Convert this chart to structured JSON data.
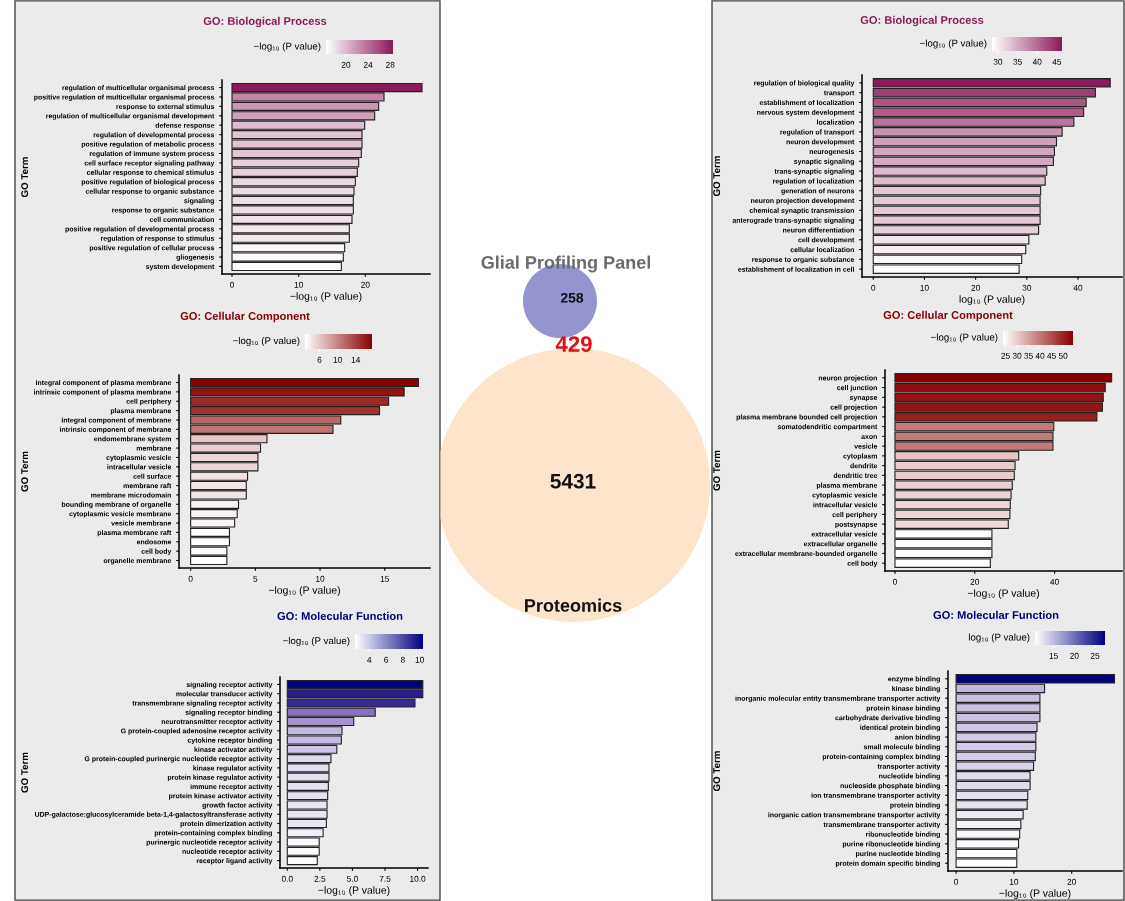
{
  "chart_data": [
    {
      "type": "bar",
      "orientation": "horizontal",
      "title": "GO: Biological Process",
      "xlabel": "−log₁₀ (P value)",
      "ylabel": "GO Term",
      "clabel": "−log₁₀ (P value)",
      "categories": [
        "regulation of multicellular organismal process",
        "positive regulation of multicellular organismal process",
        "response to external stimulus",
        "regulation of multicellular organismal development",
        "defense response",
        "regulation of developmental process",
        "positive regulation of metabolic process",
        "regulation of immune system process",
        "cell surface receptor signaling pathway",
        "cellular response to chemical stimulus",
        "positive regulation of biological process",
        "cellular response to organic substance",
        "signaling",
        "response to organic substance",
        "cell communication",
        "positive regulation of developmental process",
        "regulation of response to stimulus",
        "positive regulation of cellular process",
        "gliogenesis",
        "system development"
      ],
      "values": [
        28.5,
        22.8,
        22.0,
        21.4,
        19.9,
        19.5,
        19.5,
        19.4,
        19.0,
        18.8,
        18.5,
        18.3,
        18.2,
        18.2,
        18.0,
        17.6,
        17.6,
        16.9,
        16.7,
        16.4
      ],
      "colors": [
        "#8b1a5a",
        "#c286a8",
        "#ca96b3",
        "#cfa1bb",
        "#ddbdcf",
        "#e1c3d4",
        "#e1c3d4",
        "#e2c6d6",
        "#e7cfdc",
        "#e8d1de",
        "#ebd8e3",
        "#ecdae5",
        "#eedde6",
        "#eedde6",
        "#f0e1ea",
        "#f3e8ee",
        "#f3e8ee",
        "#faf6f8",
        "#fdfafc",
        "#ffffff"
      ],
      "xlim": [
        -1.5,
        29.7
      ],
      "xticks": [
        0,
        10,
        20
      ],
      "clim": [
        16.4,
        28.5
      ],
      "cticks": [
        20,
        24,
        28
      ]
    },
    {
      "type": "bar",
      "orientation": "horizontal",
      "title": "GO: Biological Process",
      "xlabel": "log₁₀ (P value)",
      "ylabel": "GO Term",
      "clabel": "−log₁₀ (P value)",
      "categories": [
        "regulation of biological quality",
        "transport",
        "establishment of localization",
        "nervous system development",
        "localization",
        "regulation of transport",
        "neuron development",
        "neurogenesis",
        "synaptic signaling",
        "trans-synaptic signaling",
        "regulation of localization",
        "generation of neurons",
        "neuron projection development",
        "chemical synaptic transmission",
        "anterograde trans-synaptic signaling",
        "neuron differentiation",
        "cell development",
        "cellular localization",
        "response to organic substance",
        "establishment of localization in cell"
      ],
      "values": [
        46.3,
        43.4,
        41.6,
        41.1,
        39.2,
        36.9,
        35.8,
        35.4,
        35.2,
        33.9,
        33.6,
        32.7,
        32.6,
        32.6,
        32.6,
        32.3,
        30.4,
        29.8,
        29.0,
        28.5
      ],
      "colors": [
        "#8b1a5a",
        "#9e3f74",
        "#a95685",
        "#ad5c8a",
        "#b9769c",
        "#c893b1",
        "#cfa1bb",
        "#d2a6bf",
        "#d3a8c0",
        "#dcbacd",
        "#ddbdcf",
        "#e3c8d7",
        "#e4cad9",
        "#e4cad9",
        "#e4cad9",
        "#e7cfdc",
        "#f2e6ed",
        "#f7eff3",
        "#fcf8fa",
        "#ffffff"
      ],
      "xlim": [
        -2.2,
        48.6
      ],
      "xticks": [
        0,
        10,
        20,
        30,
        40
      ],
      "clim": [
        28.5,
        46.3
      ],
      "cticks": [
        30,
        35,
        40,
        45
      ]
    },
    {
      "type": "bar",
      "orientation": "horizontal",
      "title": "GO: Cellular Component",
      "xlabel": "−log₁₀ (P value)",
      "ylabel": "GO Term",
      "clabel": "−log₁₀ (P value)",
      "categories": [
        "integral component of plasma membrane",
        "intrinsic component of plasma membrane",
        "cell periphery",
        "plasma membrane",
        "integral component of membrane",
        "intrinsic component of membrane",
        "endomembrane system",
        "membrane",
        "cytoplasmic vesicle",
        "intracellular vesicle",
        "cell surface",
        "membrane raft",
        "membrane microdomain",
        "bounding membrane of organelle",
        "cytoplasmic vesicle membrane",
        "vesicle membrane",
        "plasma membrane raft",
        "endosome",
        "cell body",
        "organelle membrane"
      ],
      "values": [
        17.6,
        16.5,
        15.3,
        14.6,
        11.6,
        11.0,
        5.9,
        5.4,
        5.2,
        5.2,
        4.4,
        4.3,
        4.3,
        3.7,
        3.6,
        3.4,
        3.0,
        3.0,
        2.8,
        2.8
      ],
      "colors": [
        "#8b0000",
        "#931212",
        "#9e2929",
        "#a23333",
        "#bb6868",
        "#bf7373",
        "#e7c9c9",
        "#ead1d1",
        "#ecd6d6",
        "#ecd6d6",
        "#f2e3e3",
        "#f3e5e5",
        "#f3e5e5",
        "#f8f0f0",
        "#f9f2f2",
        "#faf5f5",
        "#fefcfc",
        "#fefcfc",
        "#ffffff",
        "#ffffff"
      ],
      "xlim": [
        -0.9,
        18.5
      ],
      "xticks": [
        0,
        5,
        10,
        15
      ],
      "clim": [
        2.8,
        17.6
      ],
      "cticks": [
        6,
        10,
        14
      ]
    },
    {
      "type": "other",
      "title": "Glial Profiling Panel",
      "annotations": [
        "258",
        "429",
        "5431",
        "Proteomics"
      ]
    },
    {
      "type": "bar",
      "orientation": "horizontal",
      "title": "GO: Cellular Component",
      "xlabel": "−log₁₀ (P value)",
      "ylabel": "GO Term",
      "clabel": "−log₁₀ (P value)",
      "categories": [
        "neuron projection",
        "cell junction",
        "synapse",
        "cell projection",
        "plasma membrane bounded cell projection",
        "somatodendritic compartment",
        "axon",
        "vesicle",
        "cytoplasm",
        "dendrite",
        "dendritic tree",
        "plasma membrane",
        "cytoplasmic vesicle",
        "intracellular vesicle",
        "cell periphery",
        "postsynapse",
        "extracellular vesicle",
        "extracellular organelle",
        "extracellular membrane-bounded organelle",
        "cell body"
      ],
      "values": [
        54.3,
        52.7,
        52.2,
        52.0,
        50.6,
        39.8,
        39.6,
        39.6,
        31.0,
        30.1,
        29.9,
        29.4,
        29.1,
        28.9,
        28.8,
        28.4,
        24.3,
        24.3,
        24.3,
        23.9
      ],
      "colors": [
        "#8b0000",
        "#910d0d",
        "#931212",
        "#941414",
        "#991f1f",
        "#c37a7a",
        "#c37a7a",
        "#c37a7a",
        "#e4c4c4",
        "#e8cccc",
        "#e8cccc",
        "#ead1d1",
        "#ebd4d4",
        "#ecd6d6",
        "#ecd6d6",
        "#eed9d9",
        "#fefcfc",
        "#fefcfc",
        "#fefcfc",
        "#ffffff"
      ],
      "xlim": [
        -2.5,
        56.9
      ],
      "xticks": [
        0,
        20,
        40
      ],
      "clim": [
        23.9,
        54.3
      ],
      "cticks": [
        25,
        30,
        35,
        40,
        45,
        50
      ]
    },
    {
      "type": "bar",
      "orientation": "horizontal",
      "title": "GO: Molecular Function",
      "xlabel": "−log₁₀ (P value)",
      "ylabel": "GO Term",
      "clabel": "−log₁₀ (P value)",
      "categories": [
        "signaling receptor activity",
        "molecular transducer activity",
        "transmembrane signaling receptor activity",
        "signaling receptor binding",
        "neurotransmitter receptor activity",
        "G protein-coupled adenosine receptor activity",
        "cytokine receptor binding",
        "kinase activator activity",
        "G protein-coupled purinergic nucleotide receptor activity",
        "kinase regulator activity",
        "protein kinase regulator activity",
        "immune receptor activity",
        "protein kinase activator activity",
        "growth factor activity",
        "UDP-galactose:glucosylceramide beta-1,4-galactosyltransferase activity",
        "protein dimerization activity",
        "protein-containing complex binding",
        "purinergic nucleotide receptor activity",
        "nucleotide receptor activity",
        "receptor ligand activity"
      ],
      "values": [
        10.4,
        10.4,
        9.8,
        6.75,
        5.1,
        4.2,
        4.15,
        3.8,
        3.35,
        3.2,
        3.2,
        3.15,
        3.1,
        3.05,
        3.05,
        3.0,
        2.75,
        2.45,
        2.45,
        2.3
      ],
      "colors": [
        "#000080",
        "#2a1f8a",
        "#3a2a90",
        "#8a70c0",
        "#a692cc",
        "#c4b8e2",
        "#c5b9e3",
        "#cfc5e7",
        "#dedaee",
        "#e3e0f1",
        "#e3e0f1",
        "#e5e2f2",
        "#e5e2f2",
        "#e8e6f3",
        "#e8e6f3",
        "#e8e6f3",
        "#f0eff7",
        "#fafafc",
        "#fafafc",
        "#ffffff"
      ],
      "xlim": [
        -0.56,
        10.8
      ],
      "xticks": [
        {
          "value": 0,
          "label": "0.0"
        },
        2.5,
        {
          "value": 5,
          "label": "5.0"
        },
        7.5,
        {
          "value": 10,
          "label": "10.0"
        }
      ],
      "clim": [
        2.3,
        10.4
      ],
      "cticks": [
        4,
        6,
        8,
        10
      ]
    },
    {
      "type": "bar",
      "orientation": "horizontal",
      "title": "GO: Molecular Function",
      "xlabel": "−log₁₀ (P value)",
      "ylabel": "GO Term",
      "clabel": "log₁₀ (P value)",
      "categories": [
        "enzyme binding",
        "kinase binding",
        "inorganic molecular entity transmembrane transporter activity",
        "protein kinase binding",
        "carbohydrate derivative binding",
        "identical protein binding",
        "anion binding",
        "small molecule binding",
        "protein-containing complex binding",
        "transporter activity",
        "nucleotide binding",
        "nucleoside phosphate binding",
        "ion transmembrane transporter activity",
        "protein binding",
        "inorganic cation transmembrane transporter activity",
        "transmembrane transporter activity",
        "ribonucleotide binding",
        "purine ribonucleotide binding",
        "purine nucleotide binding",
        "protein domain specific binding"
      ],
      "values": [
        27.4,
        15.3,
        14.5,
        14.5,
        14.5,
        14.0,
        13.8,
        13.8,
        13.7,
        13.4,
        12.8,
        12.8,
        12.4,
        12.3,
        11.6,
        11.2,
        11.0,
        10.8,
        10.5,
        10.5
      ],
      "colors": [
        "#000080",
        "#c4b6de",
        "#cbc0e3",
        "#cbc0e3",
        "#cbc0e3",
        "#d0c6e6",
        "#d3cae7",
        "#d3cae7",
        "#d5cce8",
        "#d9d1ea",
        "#e0daee",
        "#e0daee",
        "#e5e0f1",
        "#e6e2f2",
        "#eeebf6",
        "#f5f3fa",
        "#f7f6fb",
        "#fafafc",
        "#ffffff",
        "#ffffff"
      ],
      "xlim": [
        -1.4,
        28.7
      ],
      "xticks": [
        0,
        10,
        20
      ],
      "clim": [
        10.5,
        27.4
      ],
      "cticks": [
        15,
        20,
        25
      ]
    }
  ]
}
